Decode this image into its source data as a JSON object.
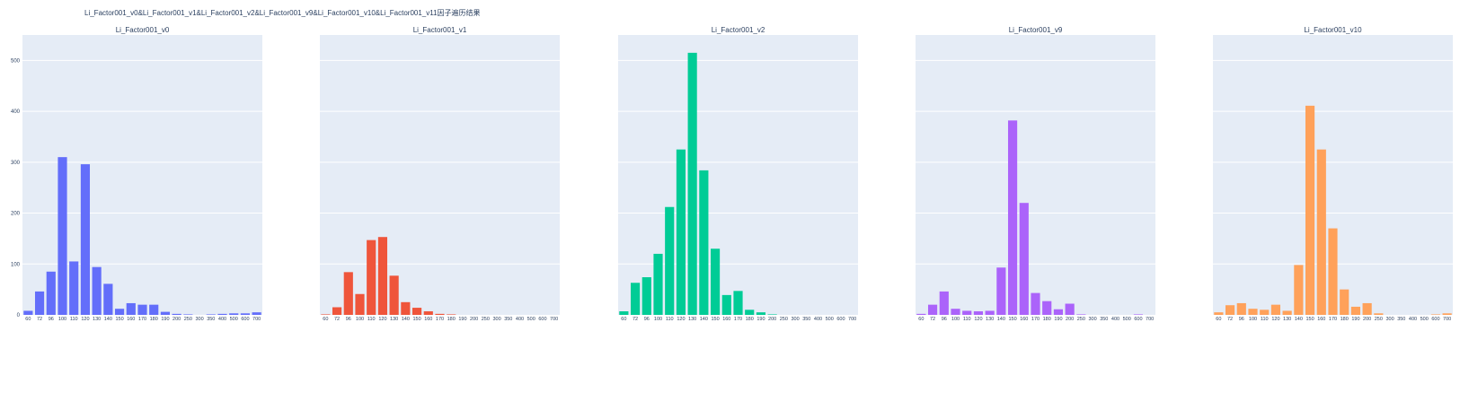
{
  "title": "Li_Factor001_v0&Li_Factor001_v1&Li_Factor001_v2&Li_Factor001_v9&Li_Factor001_v10&Li_Factor001_v11因子遍历结果",
  "chart_data": [
    {
      "type": "bar",
      "title": "Li_Factor001_v0",
      "color": "#636efa",
      "ylim": [
        0,
        550
      ],
      "yticks": [
        0,
        100,
        200,
        300,
        400,
        500
      ],
      "categories": [
        "60",
        "72",
        "96",
        "100",
        "110",
        "120",
        "130",
        "140",
        "150",
        "160",
        "170",
        "180",
        "190",
        "200",
        "250",
        "300",
        "350",
        "400",
        "500",
        "600",
        "700"
      ],
      "values": [
        8,
        46,
        85,
        310,
        105,
        296,
        94,
        61,
        12,
        23,
        20,
        20,
        6,
        2,
        1,
        0,
        1,
        2,
        3,
        3,
        5
      ]
    },
    {
      "type": "bar",
      "title": "Li_Factor001_v1",
      "color": "#ef553b",
      "ylim": [
        0,
        550
      ],
      "yticks": [
        0,
        100,
        200,
        300,
        400,
        500
      ],
      "categories": [
        "60",
        "72",
        "96",
        "100",
        "110",
        "120",
        "130",
        "140",
        "150",
        "160",
        "170",
        "180",
        "190",
        "200",
        "250",
        "300",
        "350",
        "400",
        "500",
        "600",
        "700"
      ],
      "values": [
        1,
        15,
        84,
        41,
        147,
        153,
        77,
        25,
        14,
        7,
        2,
        1,
        0,
        0,
        0,
        0,
        0,
        0,
        0,
        0,
        0
      ]
    },
    {
      "type": "bar",
      "title": "Li_Factor001_v2",
      "color": "#00cc96",
      "ylim": [
        0,
        550
      ],
      "yticks": [
        0,
        100,
        200,
        300,
        400,
        500
      ],
      "categories": [
        "60",
        "72",
        "96",
        "100",
        "110",
        "120",
        "130",
        "140",
        "150",
        "160",
        "170",
        "180",
        "190",
        "200",
        "250",
        "300",
        "350",
        "400",
        "500",
        "600",
        "700"
      ],
      "values": [
        7,
        63,
        74,
        120,
        212,
        325,
        515,
        284,
        130,
        39,
        47,
        10,
        5,
        1,
        0,
        0,
        0,
        0,
        0,
        0,
        0
      ]
    },
    {
      "type": "bar",
      "title": "Li_Factor001_v9",
      "color": "#ab63fa",
      "ylim": [
        0,
        550
      ],
      "yticks": [
        0,
        100,
        200,
        300,
        400,
        500
      ],
      "categories": [
        "60",
        "72",
        "96",
        "100",
        "110",
        "120",
        "130",
        "140",
        "150",
        "160",
        "170",
        "180",
        "190",
        "200",
        "250",
        "300",
        "350",
        "400",
        "500",
        "600",
        "700"
      ],
      "values": [
        2,
        20,
        46,
        12,
        8,
        7,
        8,
        93,
        382,
        220,
        43,
        27,
        11,
        22,
        1,
        0,
        0,
        0,
        0,
        1,
        0
      ]
    },
    {
      "type": "bar",
      "title": "Li_Factor001_v10",
      "color": "#ffa15a",
      "ylim": [
        0,
        550
      ],
      "yticks": [
        0,
        100,
        200,
        300,
        400,
        500
      ],
      "categories": [
        "60",
        "72",
        "96",
        "100",
        "110",
        "120",
        "130",
        "140",
        "150",
        "160",
        "170",
        "180",
        "190",
        "200",
        "250",
        "300",
        "350",
        "400",
        "500",
        "600",
        "700"
      ],
      "values": [
        5,
        19,
        23,
        12,
        10,
        20,
        8,
        98,
        411,
        325,
        170,
        50,
        16,
        23,
        3,
        0,
        0,
        0,
        0,
        1,
        3
      ]
    }
  ]
}
